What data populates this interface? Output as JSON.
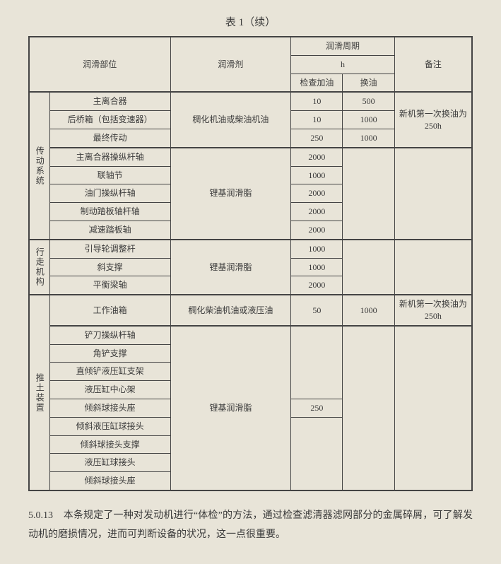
{
  "title": "表 1（续）",
  "headers": {
    "part": "润滑部位",
    "lube": "润滑剂",
    "period": "润滑周期",
    "period_unit": "h",
    "check": "检查加油",
    "change": "换油",
    "note": "备注"
  },
  "groups": {
    "g1": "传动系统",
    "g2": "行走机构",
    "g3": "推土装置"
  },
  "lubes": {
    "l1": "稠化机油或柴油机油",
    "l2": "锂基润滑脂",
    "l3": "锂基润滑脂",
    "l4": "稠化柴油机油或液压油",
    "l5": "锂基润滑脂"
  },
  "notes": {
    "n1": "新机第一次换油为 250h",
    "n2": "新机第一次换油为 250h"
  },
  "rows": {
    "r1p": "主离合器",
    "r1a": "10",
    "r1b": "500",
    "r2p": "后桥箱（包括变速器）",
    "r2a": "10",
    "r2b": "1000",
    "r3p": "最终传动",
    "r3a": "250",
    "r3b": "1000",
    "r4p": "主离合器操纵杆轴",
    "r4a": "2000",
    "r5p": "联轴节",
    "r5a": "1000",
    "r6p": "油门操纵杆轴",
    "r6a": "2000",
    "r7p": "制动踏板轴杆轴",
    "r7a": "2000",
    "r8p": "减速踏板轴",
    "r8a": "2000",
    "r9p": "引导轮调整杆",
    "r9a": "1000",
    "r10p": "斜支撑",
    "r10a": "1000",
    "r11p": "平衡梁轴",
    "r11a": "2000",
    "r12p": "工作油箱",
    "r12a": "50",
    "r12b": "1000",
    "r13p": "铲刀操纵杆轴",
    "r14p": "角铲支撑",
    "r15p": "直倾铲液压缸支架",
    "r16p": "液压缸中心架",
    "r17p": "倾斜球接头座",
    "r17a": "250",
    "r18p": "倾斜液压缸球接头",
    "r19p": "倾斜球接头支撑",
    "r20p": "液压缸球接头",
    "r21p": "倾斜球接头座"
  },
  "paragraph": {
    "num": "5.0.13",
    "text": "本条规定了一种对发动机进行“体检”的方法，通过检查滤清器滤网部分的金属碎屑，可了解发动机的磨损情况，进而可判断设备的状况，这一点很重要。"
  }
}
